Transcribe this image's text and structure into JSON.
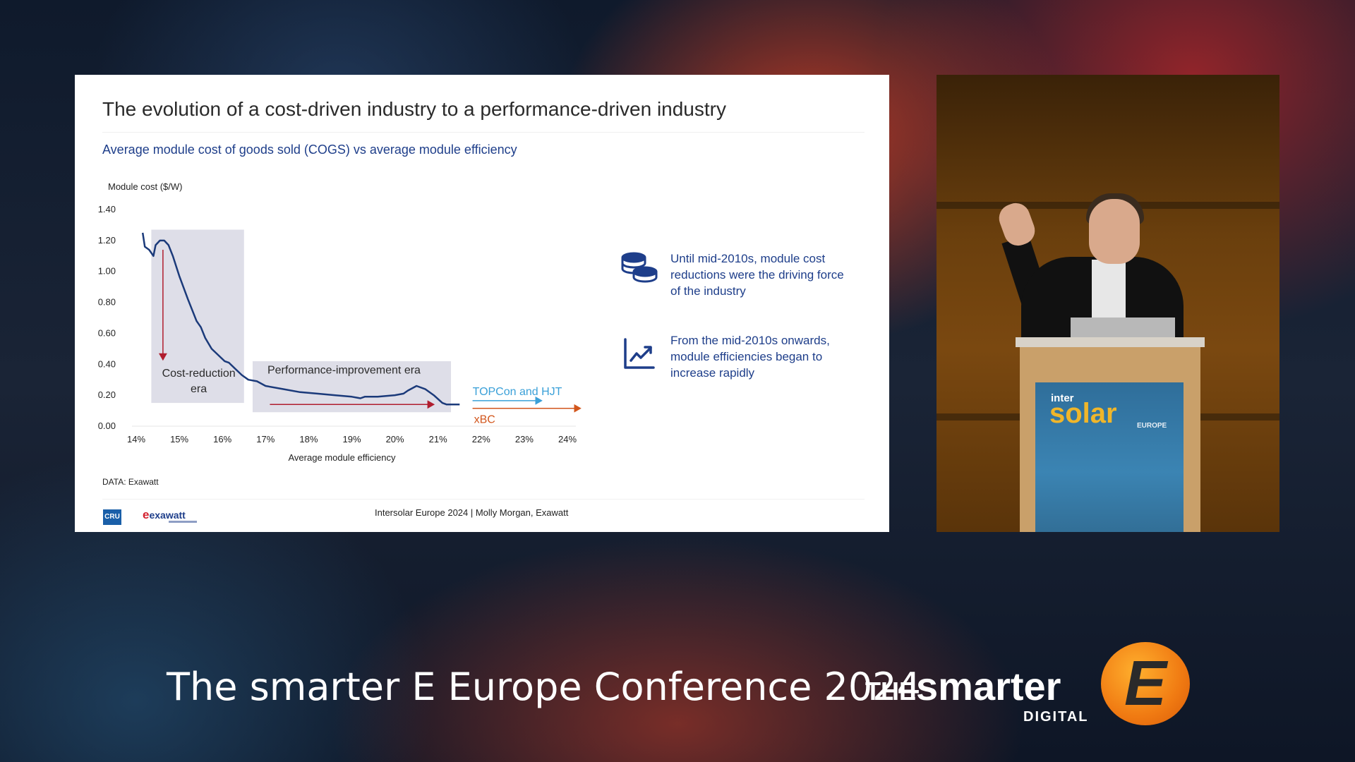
{
  "slide": {
    "title": "The evolution of a cost-driven industry to a performance-driven industry",
    "subtitle": "Average module cost of goods sold (COGS) vs average module efficiency",
    "annotation_1": "Until mid-2010s, module cost reductions were the driving force of the industry",
    "annotation_2": "From the mid-2010s onwards, module efficiencies began to increase rapidly",
    "data_source": "DATA: Exawatt",
    "footer": "Intersolar Europe 2024 | Molly Morgan, Exawatt",
    "logo_cru": "CRU",
    "logo_exawatt": "exawatt"
  },
  "video": {
    "lectern_inter": "inter",
    "lectern_solar": "solar",
    "lectern_europe": "EUROPE"
  },
  "conference_title": "The smarter E Europe Conference 2024",
  "brand": {
    "the": "THE",
    "smarter": "smarter",
    "digital": "DIGITAL",
    "e": "E"
  },
  "colors": {
    "navy": "#1e3e8a",
    "line": "#1b3a7a",
    "era_shade": "#dedee8",
    "arrow_red": "#b01d2e",
    "topcon": "#3aa0d8",
    "xbc": "#d2561c",
    "brand_orange": "#f07a12"
  },
  "chart_data": {
    "type": "line",
    "title": "",
    "ylabel": "Module cost ($/W)",
    "xlabel": "Average module efficiency",
    "ylim": [
      0,
      1.4
    ],
    "xlim": [
      14,
      24
    ],
    "yticks": [
      "0.00",
      "0.20",
      "0.40",
      "0.60",
      "0.80",
      "1.00",
      "1.20",
      "1.40"
    ],
    "xticks": [
      "14%",
      "15%",
      "16%",
      "17%",
      "18%",
      "19%",
      "20%",
      "21%",
      "22%",
      "23%",
      "24%"
    ],
    "series": [
      {
        "x": [
          14.15,
          14.2,
          14.3,
          14.4,
          14.45,
          14.55,
          14.65,
          14.75,
          14.85,
          15.0,
          15.2,
          15.4,
          15.5,
          15.6,
          15.75,
          15.9,
          16.05,
          16.15,
          16.3,
          16.45,
          16.6,
          16.8,
          17.0,
          17.4,
          17.8,
          18.2,
          18.6,
          19.0,
          19.2,
          19.3,
          19.6,
          20.0,
          20.2,
          20.3,
          20.5,
          20.7,
          20.9,
          21.1,
          21.2,
          21.5
        ],
        "y": [
          1.25,
          1.16,
          1.14,
          1.1,
          1.17,
          1.2,
          1.2,
          1.17,
          1.1,
          0.97,
          0.82,
          0.68,
          0.64,
          0.57,
          0.5,
          0.46,
          0.42,
          0.41,
          0.37,
          0.33,
          0.3,
          0.29,
          0.26,
          0.24,
          0.22,
          0.21,
          0.2,
          0.19,
          0.18,
          0.19,
          0.19,
          0.2,
          0.21,
          0.23,
          0.26,
          0.24,
          0.2,
          0.15,
          0.14,
          0.14
        ]
      }
    ],
    "annotations": [
      {
        "text": "Cost-reduction era",
        "x_range": [
          14.35,
          16.5
        ],
        "y_range": [
          0.15,
          1.27
        ]
      },
      {
        "text": "Performance-improvement era",
        "x_range": [
          16.7,
          21.3
        ],
        "y_range": [
          0.09,
          0.42
        ]
      },
      {
        "text": "TOPCon and HJT",
        "x_from": 21.8,
        "x_to": 23.4,
        "y": 0.165
      },
      {
        "text": "xBC",
        "x_from": 21.8,
        "x_to": 24.3,
        "y": 0.115
      }
    ]
  }
}
